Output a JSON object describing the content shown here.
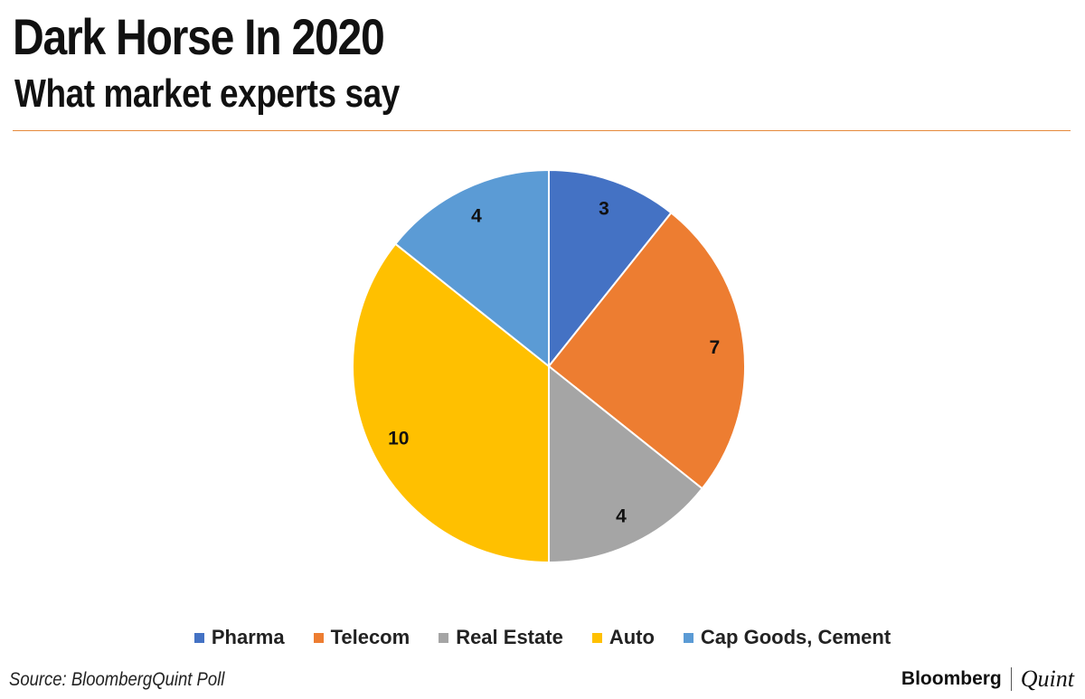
{
  "header": {
    "title": "Dark Horse In 2020",
    "subtitle": "What market experts say"
  },
  "chart_data": {
    "type": "pie",
    "title": "Dark Horse In 2020",
    "subtitle": "What market experts say",
    "categories": [
      "Pharma",
      "Telecom",
      "Real Estate",
      "Auto",
      "Cap Goods, Cement"
    ],
    "values": [
      3,
      7,
      4,
      10,
      4
    ],
    "colors": [
      "#4472c4",
      "#ed7d31",
      "#a5a5a5",
      "#ffc000",
      "#5b9bd5"
    ],
    "data_labels": [
      "3",
      "7",
      "4",
      "10",
      "4"
    ],
    "start": "12 o'clock",
    "direction": "clockwise",
    "legend_position": "bottom"
  },
  "footer": {
    "source": "Source: BloombergQuint Poll",
    "brand_primary": "Bloomberg",
    "brand_secondary": "Quint"
  }
}
